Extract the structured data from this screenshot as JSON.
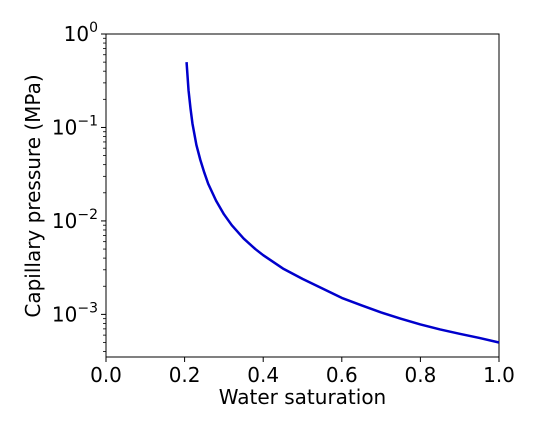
{
  "chart_data": {
    "type": "line",
    "title": "",
    "xlabel": "Water saturation",
    "ylabel": "Capillary pressure (MPa)",
    "xlim": [
      0.0,
      1.0
    ],
    "ylim": [
      0.00035,
      1.0
    ],
    "yscale": "log",
    "grid": false,
    "x_ticks": [
      {
        "value": 0.0,
        "label": "0.0"
      },
      {
        "value": 0.2,
        "label": "0.2"
      },
      {
        "value": 0.4,
        "label": "0.4"
      },
      {
        "value": 0.6,
        "label": "0.6"
      },
      {
        "value": 0.8,
        "label": "0.8"
      },
      {
        "value": 1.0,
        "label": "1.0"
      }
    ],
    "y_ticks": [
      {
        "value": 1,
        "base": "10",
        "exp": "0"
      },
      {
        "value": 0.1,
        "base": "10",
        "exp": "−1"
      },
      {
        "value": 0.01,
        "base": "10",
        "exp": "−2"
      },
      {
        "value": 0.001,
        "base": "10",
        "exp": "−3"
      }
    ],
    "series": [
      {
        "color": "#0000cc",
        "x": [
          0.205,
          0.21,
          0.215,
          0.22,
          0.23,
          0.24,
          0.25,
          0.26,
          0.28,
          0.3,
          0.32,
          0.35,
          0.38,
          0.4,
          0.45,
          0.5,
          0.55,
          0.6,
          0.65,
          0.7,
          0.75,
          0.8,
          0.85,
          0.9,
          0.95,
          1.0
        ],
        "y": [
          0.5,
          0.25,
          0.16,
          0.11,
          0.065,
          0.045,
          0.033,
          0.025,
          0.0165,
          0.0118,
          0.009,
          0.0065,
          0.005,
          0.0043,
          0.0031,
          0.0024,
          0.0019,
          0.0015,
          0.00125,
          0.00105,
          0.0009,
          0.00078,
          0.00069,
          0.00062,
          0.00056,
          0.0005
        ]
      }
    ]
  }
}
